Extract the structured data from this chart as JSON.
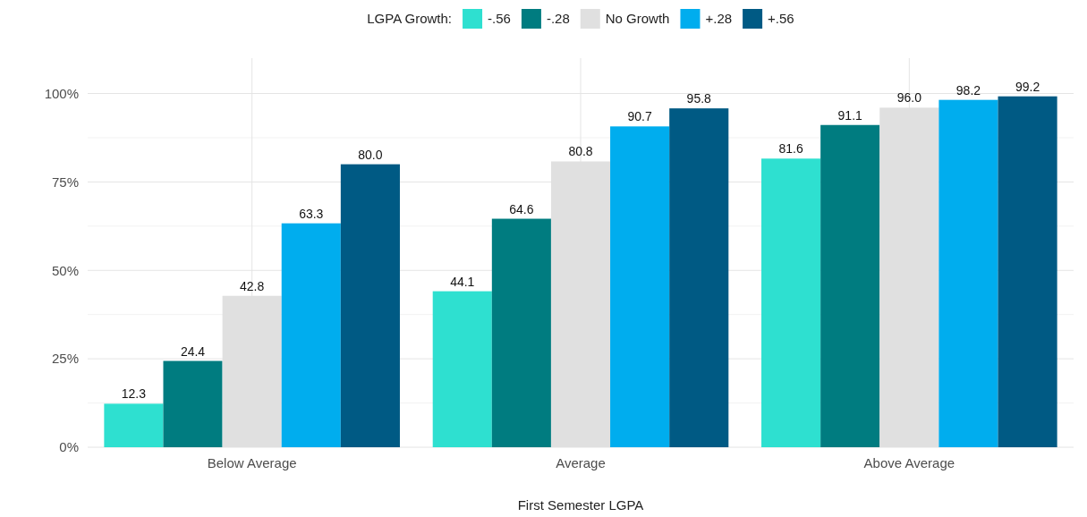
{
  "chart_data": {
    "type": "bar",
    "xlabel": "First Semester LGPA",
    "legend_title": "LGPA Growth:",
    "legend": "top",
    "categories": [
      "Below Average",
      "Average",
      "Above Average"
    ],
    "series": [
      {
        "name": "-.56",
        "color": "#2ee0d0",
        "values": [
          12.3,
          44.1,
          81.6
        ],
        "value_labels": [
          "12.3",
          "44.1",
          "81.6"
        ]
      },
      {
        "name": "-.28",
        "color": "#007c80",
        "values": [
          24.4,
          64.6,
          91.1
        ],
        "value_labels": [
          "24.4",
          "64.6",
          "91.1"
        ]
      },
      {
        "name": "No Growth",
        "color": "#e0e0e0",
        "values": [
          42.8,
          80.8,
          96.0
        ],
        "value_labels": [
          "42.8",
          "80.8",
          "96.0"
        ]
      },
      {
        "name": "+.28",
        "color": "#00adee",
        "values": [
          63.3,
          90.7,
          98.2
        ],
        "value_labels": [
          "63.3",
          "90.7",
          "98.2"
        ]
      },
      {
        "name": "+.56",
        "color": "#005a84",
        "values": [
          80.0,
          95.8,
          99.2
        ],
        "value_labels": [
          "80.0",
          "95.8",
          "99.2"
        ]
      }
    ],
    "ylim": [
      0,
      110
    ],
    "yticks": [
      {
        "value": 0,
        "label": "0%"
      },
      {
        "value": 25,
        "label": "25%"
      },
      {
        "value": 50,
        "label": "50%"
      },
      {
        "value": 75,
        "label": "75%"
      },
      {
        "value": 100,
        "label": "100%"
      }
    ],
    "grid": true
  }
}
